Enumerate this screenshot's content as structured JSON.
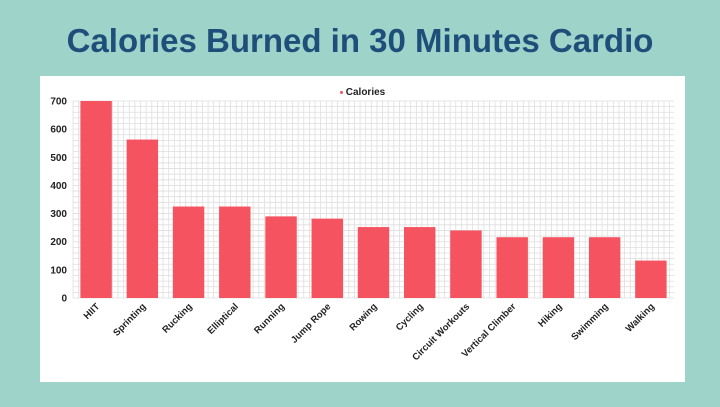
{
  "title": "Calories Burned in 30 Minutes Cardio",
  "colors": {
    "background": "#9ed3c9",
    "title": "#1d4f7a",
    "bar": "#f5535f",
    "grid": "#dedede"
  },
  "chart_data": {
    "type": "bar",
    "title": "Calories Burned in 30 Minutes Cardio",
    "xlabel": "",
    "ylabel": "",
    "ylim": [
      0,
      700
    ],
    "yticks": [
      0,
      100,
      200,
      300,
      400,
      500,
      600,
      700
    ],
    "grid": true,
    "legend": {
      "position": "top-center",
      "entries": [
        "Calories"
      ]
    },
    "categories": [
      "HIIT",
      "Sprinting",
      "Rucking",
      "Elliptical",
      "Running",
      "Jump Rope",
      "Rowing",
      "Cycling",
      "Circuit Workouts",
      "Vertical Climber",
      "Hiking",
      "Swimming",
      "Walking"
    ],
    "series": [
      {
        "name": "Calories",
        "color": "#f5535f",
        "values": [
          700,
          563,
          325,
          325,
          290,
          282,
          252,
          252,
          240,
          216,
          216,
          216,
          133
        ]
      }
    ]
  }
}
